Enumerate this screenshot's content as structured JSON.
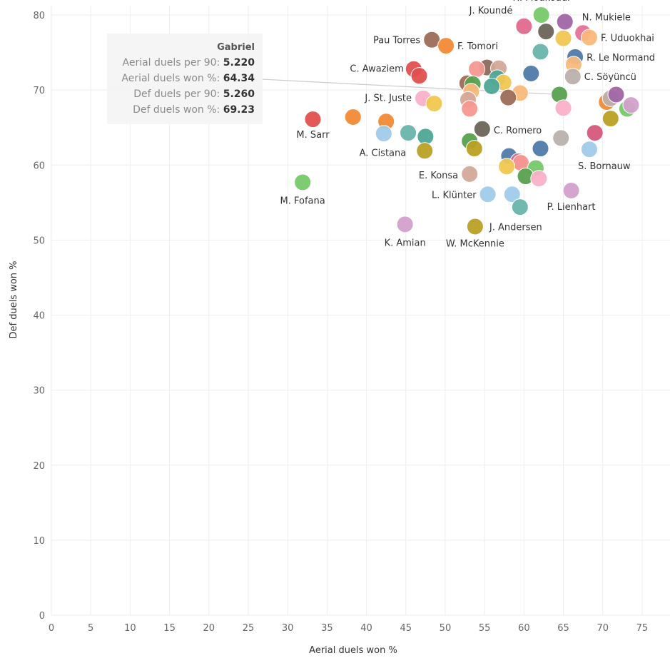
{
  "chart_data": {
    "type": "scatter",
    "title": "",
    "xlabel": "Aerial duels won %",
    "ylabel": "Def duels won %",
    "xlim": [
      0,
      77
    ],
    "ylim": [
      0,
      82
    ],
    "xticks": [
      0,
      5,
      10,
      15,
      20,
      25,
      30,
      35,
      40,
      45,
      50,
      55,
      60,
      65,
      70,
      75
    ],
    "yticks": [
      0,
      10,
      20,
      30,
      40,
      50,
      60,
      70,
      80
    ],
    "grid": true,
    "points": [
      {
        "x": 62.2,
        "y": 80.0,
        "color": "#76c96a",
        "label": "H. Moukoudi"
      },
      {
        "x": 65.2,
        "y": 79.1,
        "color": "#a066a6",
        "label": "N. Mukiele"
      },
      {
        "x": 67.5,
        "y": 77.6,
        "color": "#e57399",
        "label": ""
      },
      {
        "x": 68.3,
        "y": 77.0,
        "color": "#f9b97b",
        "label": "F. Uduokhai"
      },
      {
        "x": 60.0,
        "y": 78.5,
        "color": "#e06a8e",
        "label": "J. Koundé"
      },
      {
        "x": 62.8,
        "y": 77.8,
        "color": "#6b6457",
        "label": ""
      },
      {
        "x": 65.0,
        "y": 76.9,
        "color": "#f0c750",
        "label": ""
      },
      {
        "x": 48.3,
        "y": 76.7,
        "color": "#9c6b57",
        "label": "Pau Torres"
      },
      {
        "x": 50.1,
        "y": 75.9,
        "color": "#f18a36",
        "label": "F. Tomori"
      },
      {
        "x": 62.1,
        "y": 75.1,
        "color": "#69b5ac",
        "label": ""
      },
      {
        "x": 66.5,
        "y": 74.4,
        "color": "#4f7aaa",
        "label": "R. Le Normand"
      },
      {
        "x": 66.3,
        "y": 73.4,
        "color": "#f9b97b",
        "label": ""
      },
      {
        "x": 55.3,
        "y": 73.0,
        "color": "#8b6a5c",
        "label": ""
      },
      {
        "x": 56.8,
        "y": 72.9,
        "color": "#d4a89a",
        "label": ""
      },
      {
        "x": 54.0,
        "y": 72.8,
        "color": "#f49890",
        "label": ""
      },
      {
        "x": 46.0,
        "y": 72.8,
        "color": "#e0504f",
        "label": "C. Awaziem"
      },
      {
        "x": 46.7,
        "y": 71.9,
        "color": "#e0504f",
        "label": ""
      },
      {
        "x": 60.9,
        "y": 72.2,
        "color": "#4f7aaa",
        "label": ""
      },
      {
        "x": 66.2,
        "y": 71.8,
        "color": "#bab0ac",
        "label": "C. Söyüncü"
      },
      {
        "x": 56.6,
        "y": 71.6,
        "color": "#4fa795",
        "label": ""
      },
      {
        "x": 57.4,
        "y": 71.0,
        "color": "#f0c750",
        "label": ""
      },
      {
        "x": 52.8,
        "y": 70.9,
        "color": "#9c6b57",
        "label": ""
      },
      {
        "x": 53.5,
        "y": 70.8,
        "color": "#59a14f",
        "label": ""
      },
      {
        "x": 55.9,
        "y": 70.5,
        "color": "#4fa795",
        "label": ""
      },
      {
        "x": 53.3,
        "y": 69.8,
        "color": "#f9b97b",
        "label": ""
      },
      {
        "x": 59.5,
        "y": 69.6,
        "color": "#f9b97b",
        "label": ""
      },
      {
        "x": 64.5,
        "y": 69.4,
        "color": "#59a14f",
        "label": ""
      },
      {
        "x": 58.0,
        "y": 69.0,
        "color": "#9c6b57",
        "label": ""
      },
      {
        "x": 47.2,
        "y": 68.9,
        "color": "#fab0c8",
        "label": "J. St. Juste"
      },
      {
        "x": 48.6,
        "y": 68.2,
        "color": "#f0c750",
        "label": ""
      },
      {
        "x": 52.9,
        "y": 68.7,
        "color": "#d4a89a",
        "label": ""
      },
      {
        "x": 53.1,
        "y": 67.5,
        "color": "#f49890",
        "label": ""
      },
      {
        "x": 65.0,
        "y": 67.6,
        "color": "#fab0c8",
        "label": ""
      },
      {
        "x": 70.5,
        "y": 68.4,
        "color": "#f18a36",
        "label": ""
      },
      {
        "x": 71.0,
        "y": 68.9,
        "color": "#bab0ac",
        "label": ""
      },
      {
        "x": 71.7,
        "y": 69.4,
        "color": "#a066a6",
        "label": ""
      },
      {
        "x": 73.1,
        "y": 67.5,
        "color": "#76c96a",
        "label": ""
      },
      {
        "x": 73.6,
        "y": 68.0,
        "color": "#d3a0cc",
        "label": ""
      },
      {
        "x": 71.0,
        "y": 66.2,
        "color": "#b9a024",
        "label": ""
      },
      {
        "x": 33.2,
        "y": 66.1,
        "color": "#e0504f",
        "label": "M. Sarr"
      },
      {
        "x": 38.3,
        "y": 66.4,
        "color": "#f18a36",
        "label": ""
      },
      {
        "x": 42.5,
        "y": 65.8,
        "color": "#f18a36",
        "label": ""
      },
      {
        "x": 54.7,
        "y": 64.8,
        "color": "#6b6457",
        "label": "C. Romero"
      },
      {
        "x": 45.3,
        "y": 64.3,
        "color": "#69b5ac",
        "label": ""
      },
      {
        "x": 42.2,
        "y": 64.2,
        "color": "#9fcbe8",
        "label": ""
      },
      {
        "x": 47.5,
        "y": 63.8,
        "color": "#4fa795",
        "label": ""
      },
      {
        "x": 64.7,
        "y": 63.6,
        "color": "#bab0ac",
        "label": ""
      },
      {
        "x": 69.0,
        "y": 64.3,
        "color": "#d6577a",
        "label": ""
      },
      {
        "x": 53.1,
        "y": 63.2,
        "color": "#59a14f",
        "label": ""
      },
      {
        "x": 53.7,
        "y": 62.2,
        "color": "#b9a024",
        "label": ""
      },
      {
        "x": 62.1,
        "y": 62.2,
        "color": "#4f7aaa",
        "label": ""
      },
      {
        "x": 68.3,
        "y": 62.1,
        "color": "#9fcbe8",
        "label": "S. Bornauw"
      },
      {
        "x": 47.4,
        "y": 61.9,
        "color": "#b9a024",
        "label": "A. Cistana"
      },
      {
        "x": 58.1,
        "y": 61.2,
        "color": "#4f7aaa",
        "label": ""
      },
      {
        "x": 59.3,
        "y": 60.5,
        "color": "#e06a8e",
        "label": ""
      },
      {
        "x": 59.6,
        "y": 60.3,
        "color": "#f49890",
        "label": ""
      },
      {
        "x": 57.8,
        "y": 59.8,
        "color": "#f0c750",
        "label": ""
      },
      {
        "x": 61.5,
        "y": 59.6,
        "color": "#76c96a",
        "label": ""
      },
      {
        "x": 53.1,
        "y": 58.8,
        "color": "#d4a89a",
        "label": "E. Konsa"
      },
      {
        "x": 60.2,
        "y": 58.5,
        "color": "#59a14f",
        "label": ""
      },
      {
        "x": 61.9,
        "y": 58.2,
        "color": "#fab0c8",
        "label": ""
      },
      {
        "x": 31.9,
        "y": 57.7,
        "color": "#76c96a",
        "label": "M. Fofana"
      },
      {
        "x": 55.4,
        "y": 56.1,
        "color": "#9fcbe8",
        "label": "L. Klünter"
      },
      {
        "x": 58.5,
        "y": 56.1,
        "color": "#9fcbe8",
        "label": ""
      },
      {
        "x": 66.0,
        "y": 56.6,
        "color": "#d3a0cc",
        "label": "P. Lienhart"
      },
      {
        "x": 59.5,
        "y": 54.4,
        "color": "#69b5ac",
        "label": ""
      },
      {
        "x": 44.9,
        "y": 52.1,
        "color": "#d3a0cc",
        "label": "K. Amian"
      },
      {
        "x": 53.8,
        "y": 51.8,
        "color": "#b9a024",
        "label": "J. Andersen"
      }
    ],
    "extra_labels": [
      {
        "x": 53.8,
        "y": 51.8,
        "label": "W. McKennie"
      }
    ]
  },
  "tooltip": {
    "title": "Gabriel",
    "rows": [
      {
        "key": "Aerial duels per 90:",
        "value": "5.220"
      },
      {
        "key": "Aerial duels won %:",
        "value": "64.34"
      },
      {
        "key": "Def duels per 90:",
        "value": "5.260"
      },
      {
        "key": "Def duels won %:",
        "value": "69.23"
      }
    ]
  }
}
